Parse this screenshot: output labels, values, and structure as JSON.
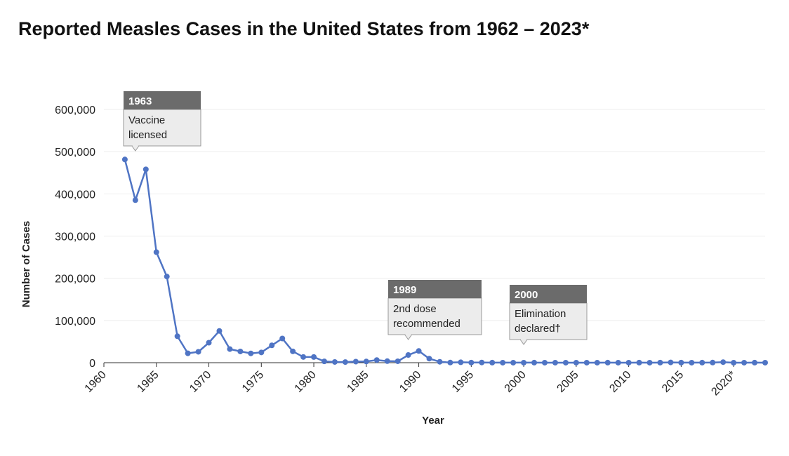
{
  "chart_data": {
    "type": "line",
    "title": "Reported Measles Cases in the United States from 1962 – 2023*",
    "xlabel": "Year",
    "ylabel": "Number of Cases",
    "xlim": [
      1960,
      2023
    ],
    "ylim": [
      0,
      600000
    ],
    "x_ticks": [
      1960,
      1965,
      1970,
      1975,
      1980,
      1985,
      1990,
      1995,
      2000,
      2005,
      2010,
      2015,
      2020
    ],
    "x_tick_labels": [
      "1960",
      "1965",
      "1970",
      "1975",
      "1980",
      "1985",
      "1990",
      "1995",
      "2000",
      "2005",
      "2010",
      "2015",
      "2020*"
    ],
    "y_ticks": [
      0,
      100000,
      200000,
      300000,
      400000,
      500000,
      600000
    ],
    "y_tick_labels": [
      "0",
      "100,000",
      "200,000",
      "300,000",
      "400,000",
      "500,000",
      "600,000"
    ],
    "grid": "horizontal",
    "colors": {
      "line": "#4f74c4",
      "annotation_header": "#6b6b6b",
      "annotation_body": "#ececec",
      "grid": "#eeeeee"
    },
    "series": [
      {
        "x": [
          1962,
          1963,
          1964,
          1965,
          1966,
          1967,
          1968,
          1969,
          1970,
          1971,
          1972,
          1973,
          1974,
          1975,
          1976,
          1977,
          1978,
          1979,
          1980,
          1981,
          1982,
          1983,
          1984,
          1985,
          1986,
          1987,
          1988,
          1989,
          1990,
          1991,
          1992,
          1993,
          1994,
          1995,
          1996,
          1997,
          1998,
          1999,
          2000,
          2001,
          2002,
          2003,
          2004,
          2005,
          2006,
          2007,
          2008,
          2009,
          2010,
          2011,
          2012,
          2013,
          2014,
          2015,
          2016,
          2017,
          2018,
          2019,
          2020,
          2021,
          2022,
          2023
        ],
        "values": [
          481530,
          385156,
          458083,
          261904,
          204136,
          62705,
          22231,
          25826,
          47351,
          75290,
          32275,
          26690,
          22094,
          24374,
          41126,
          57345,
          26871,
          13597,
          13506,
          3124,
          1714,
          1497,
          2587,
          2822,
          6282,
          3655,
          3396,
          18193,
          27786,
          9643,
          2126,
          312,
          963,
          309,
          508,
          138,
          100,
          100,
          86,
          116,
          44,
          56,
          37,
          66,
          55,
          43,
          140,
          71,
          63,
          220,
          55,
          187,
          667,
          188,
          86,
          120,
          375,
          1282,
          13,
          49,
          121,
          58
        ]
      }
    ],
    "annotations": [
      {
        "year": 1963,
        "header": "1963",
        "lines": [
          "Vaccine",
          "licensed"
        ]
      },
      {
        "year": 1989,
        "header": "1989",
        "lines": [
          "2nd dose",
          "recommended"
        ]
      },
      {
        "year": 2000,
        "header": "2000",
        "lines": [
          "Elimination",
          "declared†"
        ]
      }
    ]
  }
}
